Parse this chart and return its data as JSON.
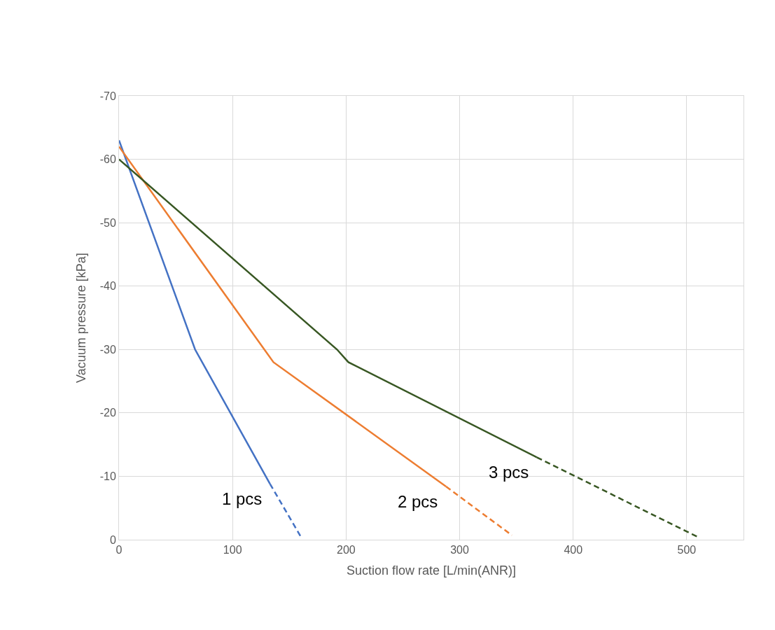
{
  "chart_data": {
    "type": "line",
    "xlabel": "Suction flow rate [L/min(ANR)]",
    "ylabel": "Vacuum pressure [kPa]",
    "series": [
      {
        "name": "1 pcs",
        "color": "#4472c4",
        "line_style": "solid",
        "x": [
          0,
          67,
          133
        ],
        "values": [
          -63,
          -30,
          -8.8
        ]
      },
      {
        "color": "#4472c4",
        "line_style": "dashed",
        "x": [
          133,
          160
        ],
        "values": [
          -8.8,
          -0.5
        ]
      },
      {
        "name": "2 pcs",
        "color": "#ed7d31",
        "line_style": "solid",
        "x": [
          0,
          136,
          288
        ],
        "values": [
          -62,
          -28,
          -8.4
        ]
      },
      {
        "color": "#ed7d31",
        "line_style": "dashed",
        "x": [
          288,
          346
        ],
        "values": [
          -8.4,
          -0.7
        ]
      },
      {
        "name": "3 pcs",
        "color": "#385723",
        "line_style": "solid",
        "x": [
          0,
          192,
          202,
          368
        ],
        "values": [
          -60,
          -30,
          -28,
          -13
        ]
      },
      {
        "color": "#385723",
        "line_style": "dashed",
        "x": [
          368,
          510
        ],
        "values": [
          -13,
          -0.4
        ]
      }
    ],
    "xlim": [
      0,
      550
    ],
    "xticks": [
      0,
      100,
      200,
      300,
      400,
      500
    ],
    "ylim": [
      0,
      -70
    ],
    "yticks": [
      0,
      -10,
      -20,
      -30,
      -40,
      -50,
      -60,
      -70
    ],
    "grid": true,
    "legend": false,
    "marker": "none"
  }
}
